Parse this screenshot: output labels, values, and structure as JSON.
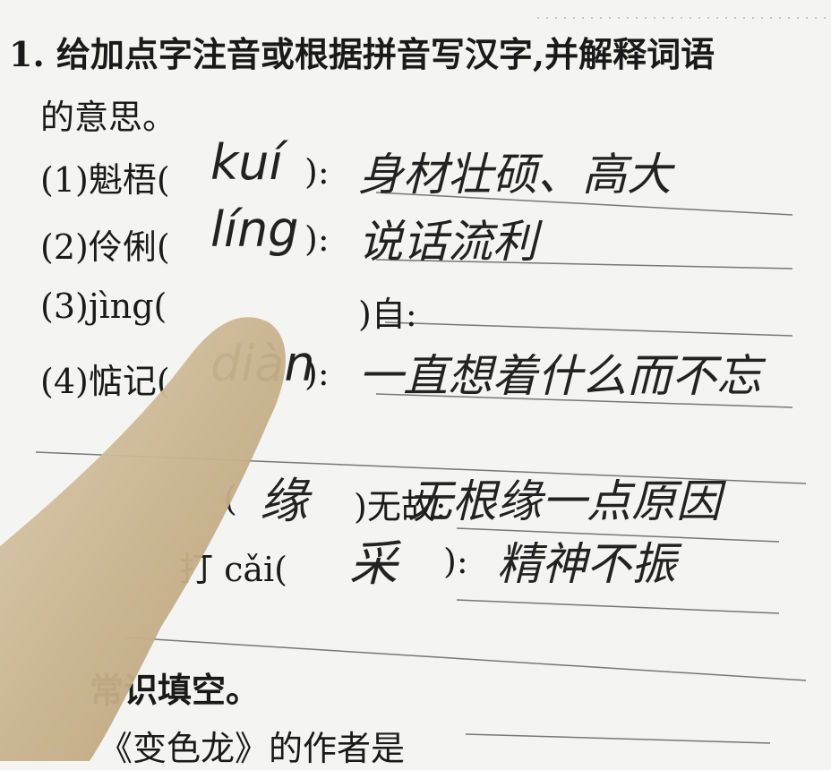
{
  "question": {
    "title": "1. 给加点字注音或根据拼音写汉字,并解释词语",
    "title_cont": "的意思。",
    "items": [
      {
        "prompt": "(1)魁梧(",
        "close": "):",
        "answer": "kuí",
        "meaning": "身材壮硕、高大"
      },
      {
        "prompt": "(2)伶俐(",
        "close": "):",
        "answer": "líng",
        "meaning": "说话流利"
      },
      {
        "prompt": "(3)jìng(",
        "close": ")自:",
        "answer": "",
        "meaning": ""
      },
      {
        "prompt": "(4)惦记(",
        "close": "):",
        "answer": "diàn",
        "meaning": "一直想着什么而不忘"
      },
      {
        "prompt": "(",
        "close": ")无故:",
        "answer": "缘",
        "meaning": "无根缘一点原因"
      },
      {
        "prompt": "打 cǎi(",
        "close": "):",
        "answer": "采",
        "meaning": "精神不振"
      }
    ]
  },
  "section2": {
    "title": "常识填空。",
    "item": "《变色龙》的作者是"
  }
}
